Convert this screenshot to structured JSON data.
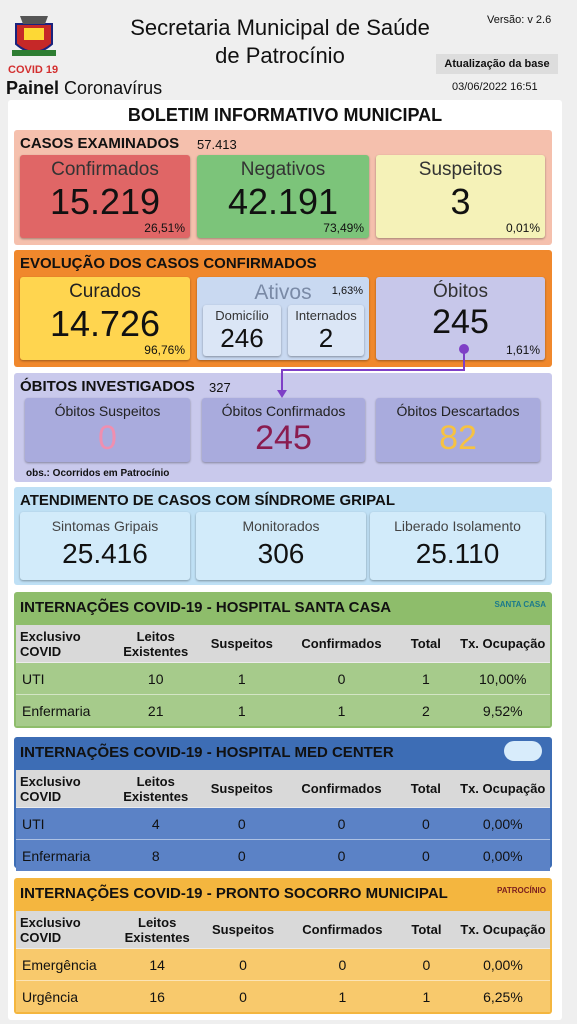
{
  "header": {
    "covid_label": "COVID 19",
    "panel_bold": "Painel",
    "panel_rest": "Coronavírus",
    "title_line1": "Secretaria Municipal de Saúde",
    "title_line2": "de Patrocínio",
    "version": "Versão: v 2.6",
    "update_button": "Atualização da base",
    "update_date": "03/06/2022 16:51"
  },
  "bulletin_title": "BOLETIM INFORMATIVO MUNICIPAL",
  "cases_examined": {
    "title": "CASOS EXAMINADOS",
    "total": "57.413",
    "cards": [
      {
        "label": "Confirmados",
        "value": "15.219",
        "percent": "26,51%"
      },
      {
        "label": "Negativos",
        "value": "42.191",
        "percent": "73,49%"
      },
      {
        "label": "Suspeitos",
        "value": "3",
        "percent": "0,01%"
      }
    ]
  },
  "evolution": {
    "title": "EVOLUÇÃO DOS CASOS CONFIRMADOS",
    "recovered": {
      "label": "Curados",
      "value": "14.726",
      "percent": "96,76%"
    },
    "active": {
      "label": "Ativos",
      "percent": "1,63%",
      "home": {
        "label": "Domicílio",
        "value": "246"
      },
      "hospitalized": {
        "label": "Internados",
        "value": "2"
      }
    },
    "deaths": {
      "label": "Óbitos",
      "value": "245",
      "percent": "1,61%"
    }
  },
  "deaths_investigated": {
    "title": "ÓBITOS INVESTIGADOS",
    "total": "327",
    "cards": [
      {
        "label": "Óbitos Suspeitos",
        "value": "0"
      },
      {
        "label": "Óbitos Confirmados",
        "value": "245"
      },
      {
        "label": "Óbitos Descartados",
        "value": "82"
      }
    ],
    "note": "obs.: Ocorridos em Patrocínio"
  },
  "flu_syndrome": {
    "title": "ATENDIMENTO DE CASOS COM SÍNDROME GRIPAL",
    "cards": [
      {
        "label": "Sintomas Gripais",
        "value": "25.416"
      },
      {
        "label": "Monitorados",
        "value": "306"
      },
      {
        "label": "Liberado Isolamento",
        "value": "25.110"
      }
    ]
  },
  "hospitals": [
    {
      "title": "INTERNAÇÕES COVID-19 - HOSPITAL SANTA CASA",
      "logo": "SANTA CASA",
      "columns": [
        "Exclusivo COVID",
        "Leitos Existentes",
        "Suspeitos",
        "Confirmados",
        "Total",
        "Tx. Ocupação"
      ],
      "rows": [
        [
          "UTI",
          "10",
          "1",
          "0",
          "1",
          "10,00%"
        ],
        [
          "Enfermaria",
          "21",
          "1",
          "1",
          "2",
          "9,52%"
        ]
      ]
    },
    {
      "title": "INTERNAÇÕES COVID-19 - HOSPITAL MED CENTER",
      "columns": [
        "Exclusivo COVID",
        "Leitos Existentes",
        "Suspeitos",
        "Confirmados",
        "Total",
        "Tx. Ocupação"
      ],
      "rows": [
        [
          "UTI",
          "4",
          "0",
          "0",
          "0",
          "0,00%"
        ],
        [
          "Enfermaria",
          "8",
          "0",
          "0",
          "0",
          "0,00%"
        ]
      ]
    },
    {
      "title": "INTERNAÇÕES COVID-19 - PRONTO SOCORRO MUNICIPAL",
      "logo": "PATROCÍNIO",
      "columns": [
        "Exclusivo COVID",
        "Leitos Existentes",
        "Suspeitos",
        "Confirmados",
        "Total",
        "Tx. Ocupação"
      ],
      "rows": [
        [
          "Emergência",
          "14",
          "0",
          "0",
          "0",
          "0,00%"
        ],
        [
          "Urgência",
          "16",
          "0",
          "1",
          "1",
          "6,25%"
        ]
      ]
    }
  ]
}
